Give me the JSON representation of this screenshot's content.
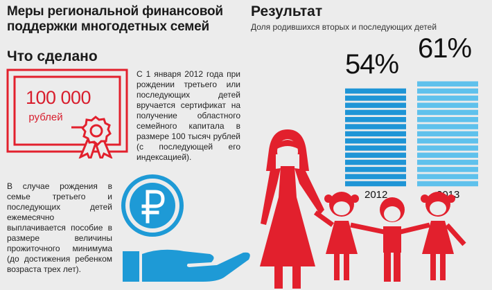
{
  "headline": "Меры региональной финансовой поддержки многодетных семей",
  "section_done": "Что сделано",
  "certificate": {
    "amount": "100 000",
    "unit": "рублей"
  },
  "paragraph1": "С 1 января 2012 года при рождении третьего или последующих детей вручается сертификат на получение областного семейного капитала в размере 100 тысяч рублей (с последующей его индексацией).",
  "paragraph2": "В случае рождения в семье третьего и последующих детей ежемесячно выплачивается пособие в размере величины прожиточного минимума (до достижения ребенком возраста трех лет).",
  "result": {
    "title": "Результат",
    "subtitle": "Доля родившихся вторых и последующих детей",
    "bars": [
      {
        "label": "54%",
        "year": "2012",
        "value": 54
      },
      {
        "label": "61%",
        "year": "2013",
        "value": 61
      }
    ]
  },
  "colors": {
    "accent_red": "#e2202d",
    "bar_2012": "#1f95d6",
    "bar_2013": "#5fc1ec",
    "background": "#ececec"
  },
  "icons": [
    "certificate-icon",
    "ruble-coin-icon",
    "hand-icon",
    "family-icon"
  ]
}
